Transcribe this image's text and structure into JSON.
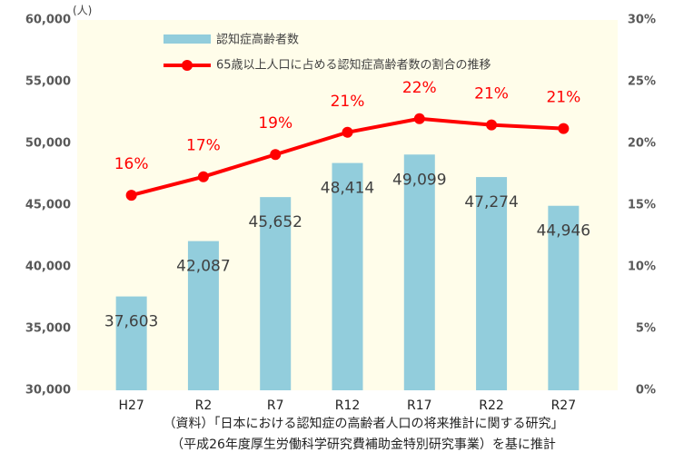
{
  "chart_data": {
    "type": "bar_line",
    "unit_label": "(人)",
    "categories": [
      "H27",
      "R2",
      "R7",
      "R12",
      "R17",
      "R22",
      "R27"
    ],
    "series": [
      {
        "name": "認知症高齢者数",
        "type": "bar",
        "color": "#92cddc",
        "values": [
          37603,
          42087,
          45652,
          48414,
          49099,
          47274,
          44946
        ],
        "value_labels": [
          "37,603",
          "42,087",
          "45,652",
          "48,414",
          "49,099",
          "47,274",
          "44,946"
        ]
      },
      {
        "name": "65歳以上人口に占める認知症高齢者数の割合の推移",
        "type": "line",
        "axis": "y2",
        "color": "#ff0000",
        "values": [
          15.8,
          17.3,
          19.1,
          20.9,
          22.0,
          21.5,
          21.2
        ],
        "value_labels": [
          "16%",
          "17%",
          "19%",
          "21%",
          "22%",
          "21%",
          "21%"
        ]
      }
    ],
    "ylim": [
      30000,
      60000
    ],
    "yticks": [
      {
        "value": 30000,
        "label": "30,000"
      },
      {
        "value": 35000,
        "label": "35,000"
      },
      {
        "value": 40000,
        "label": "40,000"
      },
      {
        "value": 45000,
        "label": "45,000"
      },
      {
        "value": 50000,
        "label": "50,000"
      },
      {
        "value": 55000,
        "label": "55,000"
      },
      {
        "value": 60000,
        "label": "60,000"
      }
    ],
    "y2lim": [
      0,
      30
    ],
    "y2ticks": [
      {
        "value": 0,
        "label": "0%"
      },
      {
        "value": 5,
        "label": "5%"
      },
      {
        "value": 10,
        "label": "10%"
      },
      {
        "value": 15,
        "label": "15%"
      },
      {
        "value": 20,
        "label": "20%"
      },
      {
        "value": 25,
        "label": "25%"
      },
      {
        "value": 30,
        "label": "30%"
      }
    ],
    "notes": [
      "（資料）「日本における認知症の高齢者人口の将来推計に関する研究」",
      "（平成26年度厚生労働科学研究費補助金特別研究事業）を基に推計"
    ]
  }
}
